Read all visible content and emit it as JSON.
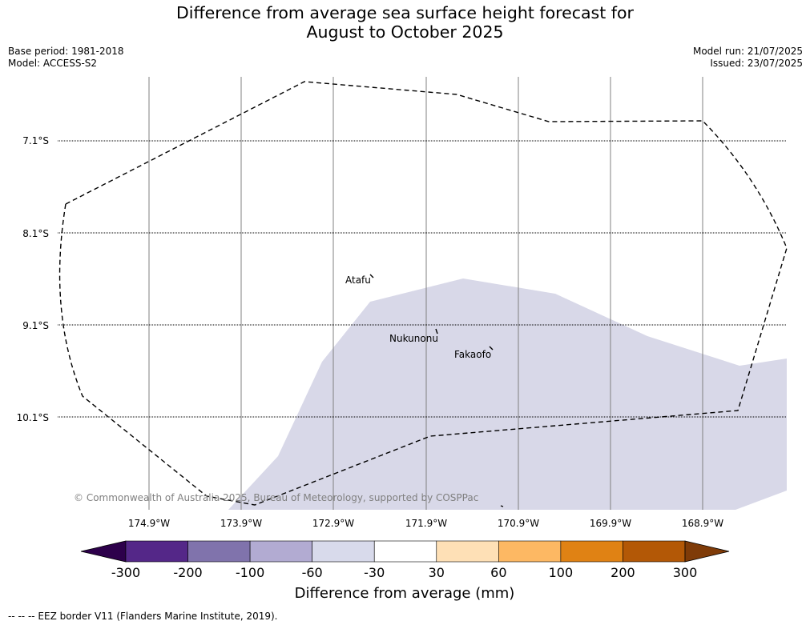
{
  "title": {
    "line1": "Difference from average sea surface height forecast for",
    "line2": "August to October 2025"
  },
  "meta": {
    "base_period": "Base period: 1981-2018",
    "model": "Model: ACCESS-S2",
    "model_run": "Model run: 21/07/2025",
    "issued": "Issued: 23/07/2025"
  },
  "map": {
    "lat_labels": [
      "7.1°S",
      "8.1°S",
      "9.1°S",
      "10.1°S"
    ],
    "lon_labels": [
      "174.9°W",
      "173.9°W",
      "172.9°W",
      "171.9°W",
      "170.9°W",
      "169.9°W",
      "168.9°W"
    ],
    "places": {
      "atafu": "Atafu",
      "nukunonu": "Nukunonu",
      "fakaofo": "Fakaofo"
    },
    "copyright": "© Commonwealth of Australia 2025, Bureau of Meteorology, supported by COSPPac",
    "colors": {
      "anomaly_fill": "#d8d8e8",
      "eez_line": "#000000",
      "meridian": "#808080"
    }
  },
  "colorbar": {
    "title": "Difference from average (mm)",
    "ticks": [
      "-300",
      "-200",
      "-100",
      "-60",
      "-30",
      "30",
      "60",
      "100",
      "200",
      "300"
    ],
    "extend_min_color": "#2d004b",
    "extend_max_color": "#7f3b08",
    "bins": [
      "#542788",
      "#8073ac",
      "#b2abd2",
      "#d8daeb",
      "#ffffff",
      "#fee0b6",
      "#fdb863",
      "#e08214",
      "#b35806"
    ]
  },
  "legend_note": "--  --  -- EEZ border V11 (Flanders Marine Institute, 2019)."
}
